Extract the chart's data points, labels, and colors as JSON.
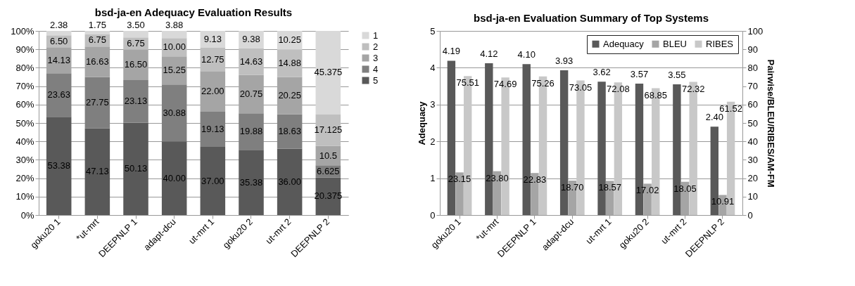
{
  "chart_data": [
    {
      "type": "bar",
      "title": "bsd-ja-en Adequacy Evaluation Results",
      "stacked": true,
      "categories": [
        "goku20 1",
        "*ut-mrt",
        "DEEPNLP 1",
        "adapt-dcu",
        "ut-mrt 1",
        "goku20 2",
        "ut-mrt 2",
        "DEEPNLP 2"
      ],
      "series": [
        {
          "name": "5",
          "color": "#595959",
          "values": [
            53.38,
            47.13,
            50.13,
            40.0,
            37.0,
            35.38,
            36.0,
            20.375
          ],
          "value_labels": [
            "53.38",
            "47.13",
            "50.13",
            "40.00",
            "37.00",
            "35.38",
            "36.00",
            "20.375"
          ]
        },
        {
          "name": "4",
          "color": "#7f7f7f",
          "values": [
            23.63,
            27.75,
            23.13,
            30.88,
            19.13,
            19.88,
            18.63,
            6.625
          ],
          "value_labels": [
            "23.63",
            "27.75",
            "23.13",
            "30.88",
            "19.13",
            "19.88",
            "18.63",
            "6.625"
          ]
        },
        {
          "name": "3",
          "color": "#a5a5a5",
          "values": [
            14.13,
            16.63,
            16.5,
            15.25,
            22.0,
            20.75,
            20.25,
            10.5
          ],
          "value_labels": [
            "14.13",
            "16.63",
            "16.50",
            "15.25",
            "22.00",
            "20.75",
            "20.25",
            "10.5"
          ]
        },
        {
          "name": "2",
          "color": "#bfbfbf",
          "values": [
            6.5,
            6.75,
            6.75,
            10.0,
            12.75,
            14.63,
            14.88,
            17.125
          ],
          "value_labels": [
            "6.50",
            "6.75",
            "6.75",
            "10.00",
            "12.75",
            "14.63",
            "14.88",
            "17.125"
          ]
        },
        {
          "name": "1",
          "color": "#d9d9d9",
          "values": [
            2.38,
            1.75,
            3.5,
            3.88,
            9.13,
            9.38,
            10.25,
            45.375
          ],
          "value_labels": [
            "2.38",
            "1.75",
            "3.50",
            "3.88",
            "9.13",
            "9.38",
            "10.25",
            "45.375"
          ]
        }
      ],
      "ylim": [
        0,
        100
      ],
      "yticks": [
        {
          "value": 0,
          "label": "0%"
        },
        {
          "value": 10,
          "label": "10%"
        },
        {
          "value": 20,
          "label": "20%"
        },
        {
          "value": 30,
          "label": "30%"
        },
        {
          "value": 40,
          "label": "40%"
        },
        {
          "value": 50,
          "label": "50%"
        },
        {
          "value": 60,
          "label": "60%"
        },
        {
          "value": 70,
          "label": "70%"
        },
        {
          "value": 80,
          "label": "80%"
        },
        {
          "value": 90,
          "label": "90%"
        },
        {
          "value": 100,
          "label": "100%"
        }
      ],
      "grid": "y",
      "legend": "right"
    },
    {
      "type": "bar",
      "title": "bsd-ja-en Evaluation Summary of Top Systems",
      "ylabel": "Adequacy",
      "y2label": "Pairwise/BLEU/RIBES/AM-FM",
      "categories": [
        "goku20 1",
        "*ut-mrt",
        "DEEPNLP 1",
        "adapt-dcu",
        "ut-mrt 1",
        "goku20 2",
        "ut-mrt 2",
        "DEEPNLP 2"
      ],
      "series": [
        {
          "name": "Adequacy",
          "color": "#595959",
          "values": [
            4.19,
            4.12,
            4.1,
            3.93,
            3.62,
            3.57,
            3.55,
            2.4
          ],
          "value_labels": [
            "4.19",
            "4.12",
            "4.10",
            "3.93",
            "3.62",
            "3.57",
            "3.55",
            "2.40"
          ]
        },
        {
          "name": "BLEU",
          "color": "#a5a5a5",
          "axis": "y2",
          "values": [
            23.15,
            23.8,
            22.83,
            18.7,
            18.57,
            17.02,
            18.05,
            10.91
          ],
          "value_labels": [
            "23.15",
            "23.80",
            "22.83",
            "18.70",
            "18.57",
            "17.02",
            "18.05",
            "10.91"
          ]
        },
        {
          "name": "RIBES",
          "color": "#c8c8c8",
          "axis": "y2",
          "values": [
            75.51,
            74.69,
            75.26,
            73.05,
            72.08,
            68.85,
            72.32,
            61.52
          ],
          "value_labels": [
            "75.51",
            "74.69",
            "75.26",
            "73.05",
            "72.08",
            "68.85",
            "72.32",
            "61.52"
          ]
        }
      ],
      "ylim": [
        0,
        5
      ],
      "yticks": [
        0,
        1,
        2,
        3,
        4,
        5
      ],
      "y2lim": [
        0,
        100
      ],
      "y2ticks": [
        0,
        10,
        20,
        30,
        40,
        50,
        60,
        70,
        80,
        90,
        100
      ],
      "grid": "y",
      "legend": "top right"
    }
  ]
}
